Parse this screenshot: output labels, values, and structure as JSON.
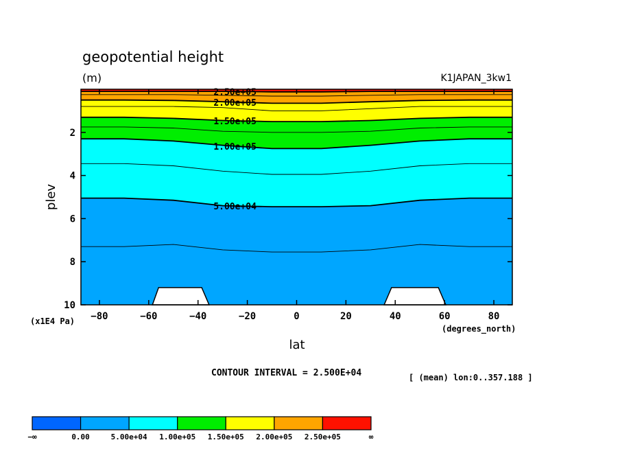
{
  "chart_data": {
    "type": "contour",
    "title": "geopotential height",
    "units": "(m)",
    "run_label": "K1JAPAN_3kw1",
    "xlabel": "lat",
    "xunits": "(degrees_north)",
    "ylabel": "plev",
    "yunits": "(x1E4 Pa)",
    "xlim": [
      -87.5,
      87.5
    ],
    "ylim": [
      10,
      0
    ],
    "x_ticks": [
      -80,
      -60,
      -40,
      -20,
      0,
      20,
      40,
      60,
      80
    ],
    "x_tick_labels": [
      "−80",
      "−60",
      "−40",
      "−20",
      "0",
      "20",
      "40",
      "60",
      "80"
    ],
    "y_ticks": [
      2,
      4,
      6,
      8,
      10
    ],
    "y_tick_labels": [
      "2",
      "4",
      "6",
      "8",
      "10"
    ],
    "contour_interval_text": "CONTOUR INTERVAL = 2.500E+04",
    "mean_text": "[ (mean) lon:0..357.188 ]",
    "lat_nodes": [
      -87.5,
      -70,
      -50,
      -30,
      -10,
      10,
      30,
      50,
      70,
      87.5
    ],
    "contours": [
      {
        "value": 250000,
        "plev": [
          0.1,
          0.1,
          0.1,
          0.1,
          0.12,
          0.12,
          0.1,
          0.1,
          0.1,
          0.1
        ],
        "labelled": true,
        "label": "2.50e+05",
        "label_lat": -25
      },
      {
        "value": 225000,
        "plev": [
          0.25,
          0.25,
          0.25,
          0.28,
          0.32,
          0.32,
          0.28,
          0.25,
          0.25,
          0.25
        ],
        "labelled": false
      },
      {
        "value": 200000,
        "plev": [
          0.5,
          0.5,
          0.52,
          0.58,
          0.65,
          0.65,
          0.58,
          0.52,
          0.5,
          0.5
        ],
        "labelled": true,
        "label": "2.00e+05",
        "label_lat": -25
      },
      {
        "value": 175000,
        "plev": [
          0.8,
          0.8,
          0.8,
          0.85,
          1.0,
          1.0,
          0.9,
          0.8,
          0.8,
          0.8
        ],
        "labelled": false
      },
      {
        "value": 150000,
        "plev": [
          1.3,
          1.3,
          1.35,
          1.45,
          1.5,
          1.5,
          1.45,
          1.35,
          1.3,
          1.3
        ],
        "labelled": true,
        "label": "1.50e+05",
        "label_lat": -25
      },
      {
        "value": 125000,
        "plev": [
          1.75,
          1.75,
          1.8,
          1.95,
          2.0,
          2.0,
          1.95,
          1.8,
          1.75,
          1.75
        ],
        "labelled": false
      },
      {
        "value": 100000,
        "plev": [
          2.3,
          2.3,
          2.4,
          2.6,
          2.75,
          2.75,
          2.6,
          2.4,
          2.3,
          2.3
        ],
        "labelled": true,
        "label": "1.00e+05",
        "label_lat": -25
      },
      {
        "value": 75000,
        "plev": [
          3.45,
          3.45,
          3.55,
          3.8,
          3.95,
          3.95,
          3.8,
          3.55,
          3.45,
          3.45
        ],
        "labelled": false
      },
      {
        "value": 50000,
        "plev": [
          5.05,
          5.05,
          5.15,
          5.4,
          5.45,
          5.45,
          5.4,
          5.15,
          5.05,
          5.05
        ],
        "labelled": true,
        "label": "5.00e+04",
        "label_lat": -25
      },
      {
        "value": 25000,
        "plev": [
          7.3,
          7.3,
          7.2,
          7.45,
          7.55,
          7.55,
          7.45,
          7.2,
          7.3,
          7.3
        ],
        "labelled": false
      }
    ],
    "terrain_masks": [
      {
        "lat_base": [
          -58.5,
          -35.5
        ],
        "lat_top": [
          -56,
          -38.5
        ],
        "plev_top": 9.2
      },
      {
        "lat_base": [
          35.5,
          60.5
        ],
        "lat_top": [
          38.5,
          57.5
        ],
        "plev_top": 9.2
      }
    ],
    "colorbar": {
      "bins": [
        {
          "label": "−∞",
          "color": "#0066ff"
        },
        {
          "label": "0.00",
          "color": "#00a6ff"
        },
        {
          "label": "5.00e+04",
          "color": "#00ffff"
        },
        {
          "label": "1.00e+05",
          "color": "#00ee00"
        },
        {
          "label": "1.50e+05",
          "color": "#ffff00"
        },
        {
          "label": "2.00e+05",
          "color": "#ffa500"
        },
        {
          "label": "2.50e+05",
          "color": "#ff1100"
        }
      ],
      "end_label": "∞"
    }
  }
}
